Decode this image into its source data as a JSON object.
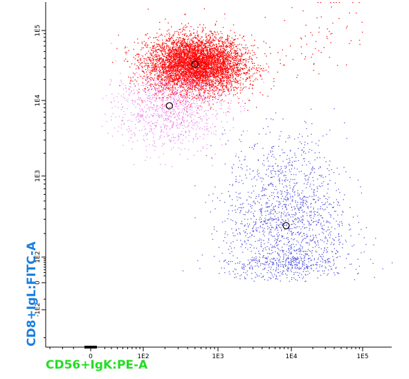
{
  "chart_data": {
    "type": "scatter",
    "title": "",
    "xlabel": "CD56+IgK:PE-A",
    "ylabel": "CD8+IgL:FITC-A",
    "x_scale": "biexponential",
    "y_scale": "biexponential",
    "x_ticks": [
      "0",
      "1E2",
      "1E3",
      "1E4",
      "1E5"
    ],
    "y_ticks": [
      "-1E2",
      "0",
      "1E2",
      "1E3",
      "1E4",
      "1E5"
    ],
    "axis_label_colors": {
      "x": "#22dd22",
      "y": "#1a7fe0"
    },
    "grid": false,
    "legend": "none",
    "series": [
      {
        "color": "#ff0000",
        "center": [
          500,
          33000
        ],
        "spread": [
          0.32,
          0.2
        ],
        "count": 5200,
        "marker": "black-circle"
      },
      {
        "color": "#ee88ee",
        "center": [
          230,
          8500
        ],
        "spread": [
          0.38,
          0.28
        ],
        "count": 1100,
        "marker": "black-circle"
      },
      {
        "color": "#5555dd",
        "center": [
          8500,
          250
        ],
        "spread": [
          0.42,
          0.55
        ],
        "count": 1800,
        "marker": "black-circle"
      }
    ]
  }
}
